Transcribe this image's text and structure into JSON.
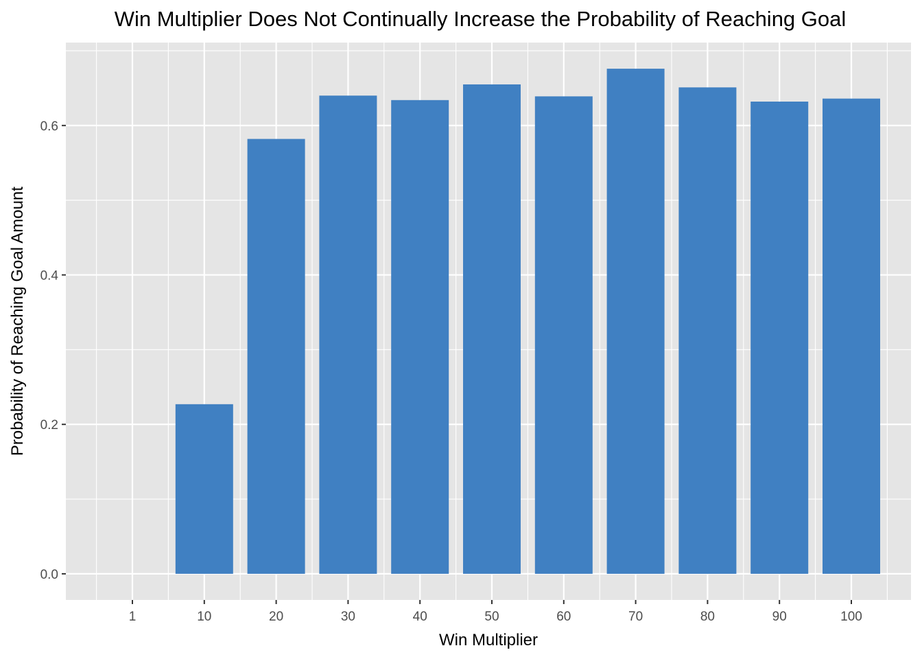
{
  "chart_data": {
    "type": "bar",
    "title": "Win Multiplier Does Not Continually Increase the Probability of Reaching Goal",
    "xlabel": "Win Multiplier",
    "ylabel": "Probability of Reaching Goal Amount",
    "categories": [
      "1",
      "10",
      "20",
      "30",
      "40",
      "50",
      "60",
      "70",
      "80",
      "90",
      "100"
    ],
    "values": [
      0.0,
      0.227,
      0.582,
      0.64,
      0.634,
      0.655,
      0.639,
      0.676,
      0.651,
      0.632,
      0.636
    ],
    "ylim": [
      -0.035,
      0.711
    ],
    "yticks": [
      0.0,
      0.2,
      0.4,
      0.6
    ],
    "ytick_labels": [
      "0.0",
      "0.2",
      "0.4",
      "0.6"
    ],
    "grid": true,
    "legend": "none",
    "colors": {
      "bar": "#4080c2",
      "panel": "#e5e5e5",
      "grid": "#ffffff"
    }
  }
}
